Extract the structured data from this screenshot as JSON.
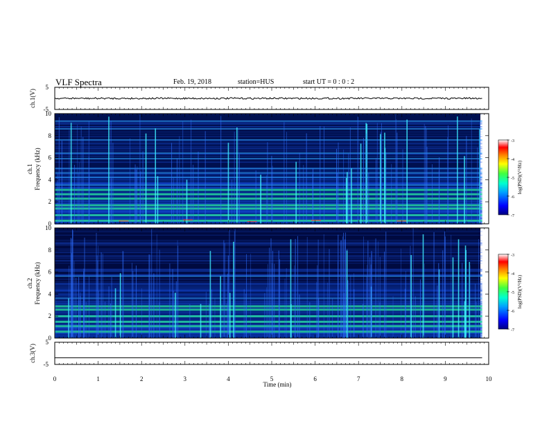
{
  "header": {
    "title": "VLF Spectra",
    "date": "Feb. 19, 2018",
    "station": "station=HUS",
    "start_ut": "start  UT =   0 : 0  : 2"
  },
  "colors": {
    "spectrogram_background": "#000b4a",
    "spectrogram_mid": "#0a38c8",
    "band_green": "#20e0a0",
    "trace": "#000000"
  },
  "chart_data": [
    {
      "type": "line",
      "name": "ch1-waveform",
      "ylabel": "ch.1(V)",
      "ylim": [
        -5,
        5
      ],
      "yticks": [
        "5",
        "-5"
      ],
      "description_values": {
        "baseline": 0
      }
    },
    {
      "type": "heatmap",
      "name": "ch1-spectrogram",
      "ylabel_line1": "ch.1",
      "ylabel_line2": "Frequency (kHz)",
      "ylim": [
        0,
        10
      ],
      "yticks": [
        "0",
        "2",
        "4",
        "6",
        "8",
        "10"
      ],
      "colorbar": {
        "label": "log(PSD)(V²/Hz)",
        "range": [
          -7,
          -3
        ],
        "ticks": [
          "-3",
          "-4",
          "-5",
          "-6",
          "-7"
        ]
      },
      "bands_khz": [
        0.3,
        0.8,
        1.4,
        1.7,
        2.3,
        2.7,
        3.1,
        3.5,
        4.2,
        4.6,
        5.0,
        5.9,
        6.4,
        7.6,
        8.6,
        9.3
      ]
    },
    {
      "type": "heatmap",
      "name": "ch2-spectrogram",
      "ylabel_line1": "ch.2",
      "ylabel_line2": "Frequency (kHz)",
      "ylim": [
        0,
        10
      ],
      "yticks": [
        "0",
        "2",
        "4",
        "6",
        "8",
        "10"
      ],
      "colorbar": {
        "label": "log(PSD)(V²/Hz)",
        "range": [
          -7,
          -3
        ],
        "ticks": [
          "-3",
          "-4",
          "-5",
          "-6",
          "-7"
        ]
      },
      "bands_khz": [
        0.6,
        1.1,
        1.5,
        2.0,
        2.6,
        2.9,
        3.6,
        5.6
      ]
    },
    {
      "type": "line",
      "name": "ch3-waveform",
      "ylabel": "ch.3(V)",
      "ylim": [
        -5,
        5
      ],
      "yticks": [
        "5",
        "-5"
      ],
      "description_values": {
        "baseline": -2
      }
    }
  ],
  "xaxis": {
    "label": "Time  (min)",
    "range": [
      0,
      10
    ],
    "ticks": [
      "0",
      "1",
      "2",
      "3",
      "4",
      "5",
      "6",
      "7",
      "8",
      "9",
      "10"
    ],
    "data_end_min": 9.85
  }
}
